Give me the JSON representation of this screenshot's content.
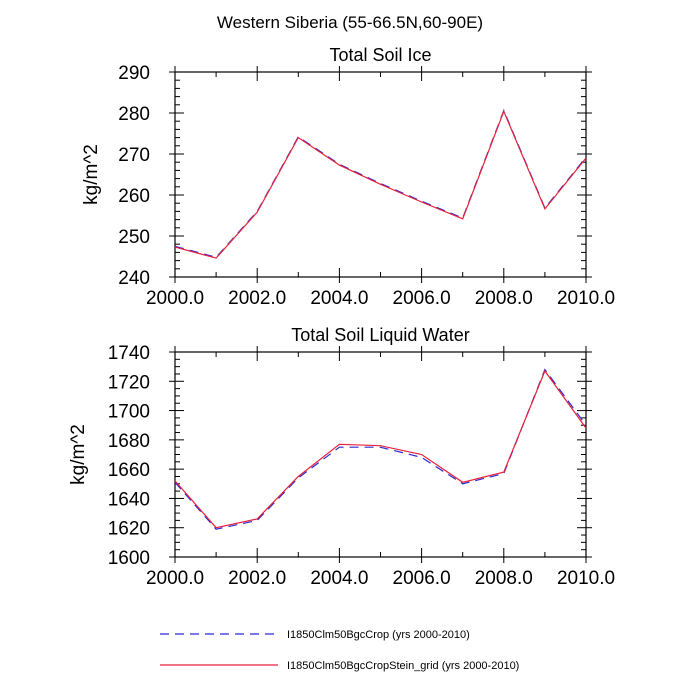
{
  "figure": {
    "title": "Western Siberia (55-66.5N,60-90E)"
  },
  "chart_data": [
    {
      "type": "line",
      "title": "Total Soil Ice",
      "xlabel": "",
      "ylabel": "kg/m^2",
      "xlim": [
        2000,
        2010
      ],
      "ylim": [
        240,
        290
      ],
      "xticks": [
        2000,
        2002,
        2004,
        2006,
        2008,
        2010
      ],
      "xtick_labels": [
        "2000.0",
        "2002.0",
        "2004.0",
        "2006.0",
        "2008.0",
        "2010.0"
      ],
      "yticks": [
        240,
        250,
        260,
        270,
        280,
        290
      ],
      "ytick_labels": [
        "240",
        "250",
        "260",
        "270",
        "280",
        "290"
      ],
      "x": [
        2000,
        2001,
        2002,
        2003,
        2004,
        2005,
        2006,
        2007,
        2008,
        2009,
        2010
      ],
      "series": [
        {
          "name": "I1850Clm50BgcCrop (yrs 2000-2010)",
          "color": "#2b2bd6",
          "dash": "dashed",
          "values": [
            247.5,
            244.8,
            256.0,
            274.2,
            267.5,
            262.8,
            258.5,
            254.4,
            280.6,
            256.8,
            269.2
          ]
        },
        {
          "name": "I1850Clm50BgcCropStein_grid (yrs 2000-2010)",
          "color": "#e8203a",
          "dash": "solid",
          "values": [
            247.3,
            244.6,
            255.8,
            274.0,
            267.3,
            262.6,
            258.3,
            254.2,
            280.4,
            256.6,
            269.0
          ]
        }
      ]
    },
    {
      "type": "line",
      "title": "Total Soil Liquid Water",
      "xlabel": "",
      "ylabel": "kg/m^2",
      "xlim": [
        2000,
        2010
      ],
      "ylim": [
        1600,
        1740
      ],
      "xticks": [
        2000,
        2002,
        2004,
        2006,
        2008,
        2010
      ],
      "xtick_labels": [
        "2000.0",
        "2002.0",
        "2004.0",
        "2006.0",
        "2008.0",
        "2010.0"
      ],
      "yticks": [
        1600,
        1620,
        1640,
        1660,
        1680,
        1700,
        1720,
        1740
      ],
      "ytick_labels": [
        "1600",
        "1620",
        "1640",
        "1660",
        "1680",
        "1700",
        "1720",
        "1740"
      ],
      "x": [
        2000,
        2001,
        2002,
        2003,
        2004,
        2005,
        2006,
        2007,
        2008,
        2009,
        2010
      ],
      "series": [
        {
          "name": "I1850Clm50BgcCrop (yrs 2000-2010)",
          "color": "#2b2bd6",
          "dash": "dashed",
          "values": [
            1651,
            1619,
            1625,
            1654,
            1675,
            1675,
            1668,
            1650,
            1657,
            1728,
            1690
          ]
        },
        {
          "name": "I1850Clm50BgcCropStein_grid (yrs 2000-2010)",
          "color": "#e8203a",
          "dash": "solid",
          "values": [
            1652,
            1620,
            1626,
            1655,
            1677,
            1676,
            1670,
            1651,
            1658,
            1727,
            1688
          ]
        }
      ]
    }
  ],
  "legend": {
    "placement": "bottom",
    "entries": [
      {
        "label": "I1850Clm50BgcCrop (yrs 2000-2010)",
        "color": "#2b2bd6",
        "dash": "dashed"
      },
      {
        "label": "I1850Clm50BgcCropStein_grid (yrs 2000-2010)",
        "color": "#e8203a",
        "dash": "solid"
      }
    ]
  }
}
